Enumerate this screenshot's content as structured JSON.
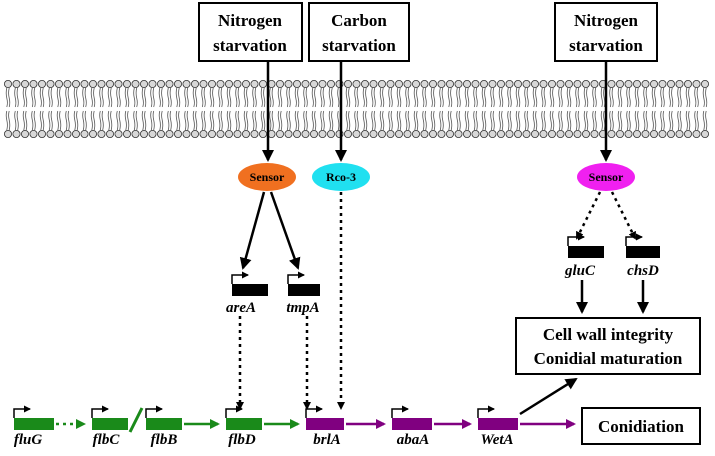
{
  "stimuli": {
    "nitrogen_left": [
      "Nitrogen",
      "starvation"
    ],
    "carbon": [
      "Carbon",
      "starvation"
    ],
    "nitrogen_right": [
      "Nitrogen",
      "starvation"
    ]
  },
  "receptors": {
    "sensor_left": "Sensor",
    "rco3": "Rco-3",
    "sensor_right": "Sensor"
  },
  "genes": {
    "areA": "areA",
    "tmpA": "tmpA",
    "gluC": "gluC",
    "chsD": "chsD",
    "fluG": "fluG",
    "flbC": "flbC",
    "flbB": "flbB",
    "flbD": "flbD",
    "brlA": "brlA",
    "abaA": "abaA",
    "WetA": "WetA"
  },
  "outcomes": {
    "cell_wall": [
      "Cell wall integrity",
      "Conidial maturation"
    ],
    "conidiation": "Conidiation"
  },
  "colors": {
    "sensor_left": "#f07020",
    "rco3": "#20e0f0",
    "sensor_right": "#f020f0",
    "green_gene": "#1a8a1a",
    "purple_gene": "#800080",
    "black_gene": "#000000"
  }
}
